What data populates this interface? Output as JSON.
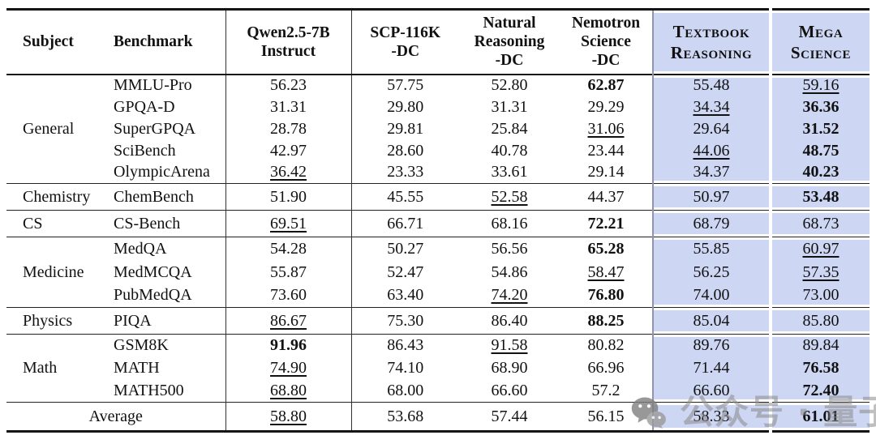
{
  "table": {
    "columns": [
      {
        "label": "Subject"
      },
      {
        "label": "Benchmark"
      },
      {
        "label": "Qwen2.5-7B\nInstruct"
      },
      {
        "label": "SCP-116K\n-DC"
      },
      {
        "label": "Natural\nReasoning\n-DC"
      },
      {
        "label": "Nemotron\nScience\n-DC"
      },
      {
        "label": "Textbook\nReasoning",
        "highlight": true
      },
      {
        "label": "Mega\nScience",
        "highlight": true
      }
    ],
    "sections": [
      {
        "subject": "General",
        "rows": [
          {
            "benchmark": "MMLU-Pro",
            "values": [
              {
                "v": "56.23"
              },
              {
                "v": "57.75"
              },
              {
                "v": "52.80"
              },
              {
                "v": "62.87",
                "style": "bold"
              },
              {
                "v": "55.48"
              },
              {
                "v": "59.16",
                "style": "underline"
              }
            ]
          },
          {
            "benchmark": "GPQA-D",
            "values": [
              {
                "v": "31.31"
              },
              {
                "v": "29.80"
              },
              {
                "v": "31.31"
              },
              {
                "v": "29.29"
              },
              {
                "v": "34.34",
                "style": "underline"
              },
              {
                "v": "36.36",
                "style": "bold"
              }
            ]
          },
          {
            "benchmark": "SuperGPQA",
            "values": [
              {
                "v": "28.78"
              },
              {
                "v": "29.81"
              },
              {
                "v": "25.84"
              },
              {
                "v": "31.06",
                "style": "underline"
              },
              {
                "v": "29.64"
              },
              {
                "v": "31.52",
                "style": "bold"
              }
            ]
          },
          {
            "benchmark": "SciBench",
            "values": [
              {
                "v": "42.97"
              },
              {
                "v": "28.60"
              },
              {
                "v": "40.78"
              },
              {
                "v": "23.44"
              },
              {
                "v": "44.06",
                "style": "underline"
              },
              {
                "v": "48.75",
                "style": "bold"
              }
            ]
          },
          {
            "benchmark": "OlympicArena",
            "values": [
              {
                "v": "36.42",
                "style": "underline"
              },
              {
                "v": "23.33"
              },
              {
                "v": "33.61"
              },
              {
                "v": "29.14"
              },
              {
                "v": "34.37"
              },
              {
                "v": "40.23",
                "style": "bold"
              }
            ]
          }
        ]
      },
      {
        "subject": "Chemistry",
        "rows": [
          {
            "benchmark": "ChemBench",
            "values": [
              {
                "v": "51.90"
              },
              {
                "v": "45.55"
              },
              {
                "v": "52.58",
                "style": "underline"
              },
              {
                "v": "44.37"
              },
              {
                "v": "50.97"
              },
              {
                "v": "53.48",
                "style": "bold"
              }
            ]
          }
        ]
      },
      {
        "subject": "CS",
        "rows": [
          {
            "benchmark": "CS-Bench",
            "values": [
              {
                "v": "69.51",
                "style": "underline"
              },
              {
                "v": "66.71"
              },
              {
                "v": "68.16"
              },
              {
                "v": "72.21",
                "style": "bold"
              },
              {
                "v": "68.79"
              },
              {
                "v": "68.73"
              }
            ]
          }
        ]
      },
      {
        "subject": "Medicine",
        "rows": [
          {
            "benchmark": "MedQA",
            "values": [
              {
                "v": "54.28"
              },
              {
                "v": "50.27"
              },
              {
                "v": "56.56"
              },
              {
                "v": "65.28",
                "style": "bold"
              },
              {
                "v": "55.85"
              },
              {
                "v": "60.97",
                "style": "underline"
              }
            ]
          },
          {
            "benchmark": "MedMCQA",
            "values": [
              {
                "v": "55.87"
              },
              {
                "v": "52.47"
              },
              {
                "v": "54.86"
              },
              {
                "v": "58.47",
                "style": "underline"
              },
              {
                "v": "56.25"
              },
              {
                "v": "57.35",
                "style": "underline"
              }
            ]
          },
          {
            "benchmark": "PubMedQA",
            "values": [
              {
                "v": "73.60"
              },
              {
                "v": "63.40"
              },
              {
                "v": "74.20",
                "style": "underline"
              },
              {
                "v": "76.80",
                "style": "bold"
              },
              {
                "v": "74.00"
              },
              {
                "v": "73.00"
              }
            ]
          }
        ]
      },
      {
        "subject": "Physics",
        "rows": [
          {
            "benchmark": "PIQA",
            "values": [
              {
                "v": "86.67",
                "style": "underline"
              },
              {
                "v": "75.30"
              },
              {
                "v": "86.40"
              },
              {
                "v": "88.25",
                "style": "bold"
              },
              {
                "v": "85.04"
              },
              {
                "v": "85.80"
              }
            ]
          }
        ]
      },
      {
        "subject": "Math",
        "rows": [
          {
            "benchmark": "GSM8K",
            "values": [
              {
                "v": "91.96",
                "style": "bold"
              },
              {
                "v": "86.43"
              },
              {
                "v": "91.58",
                "style": "underline"
              },
              {
                "v": "80.82"
              },
              {
                "v": "89.76"
              },
              {
                "v": "89.84"
              }
            ]
          },
          {
            "benchmark": "MATH",
            "values": [
              {
                "v": "74.90",
                "style": "underline"
              },
              {
                "v": "74.10"
              },
              {
                "v": "68.90"
              },
              {
                "v": "66.96"
              },
              {
                "v": "71.44"
              },
              {
                "v": "76.58",
                "style": "bold"
              }
            ]
          },
          {
            "benchmark": "MATH500",
            "values": [
              {
                "v": "68.80",
                "style": "underline"
              },
              {
                "v": "68.00"
              },
              {
                "v": "66.60"
              },
              {
                "v": "57.2"
              },
              {
                "v": "66.60"
              },
              {
                "v": "72.40",
                "style": "bold"
              }
            ]
          }
        ]
      }
    ],
    "footer": {
      "label": "Average",
      "values": [
        {
          "v": "58.80",
          "style": "underline"
        },
        {
          "v": "53.68"
        },
        {
          "v": "57.44"
        },
        {
          "v": "56.15"
        },
        {
          "v": "58.33"
        },
        {
          "v": "61.01",
          "style": "bold"
        }
      ]
    }
  },
  "watermark": {
    "icon": "wechat-icon",
    "text": "公众号 · 量子位"
  },
  "colors": {
    "highlight": "#cdd6f2",
    "highlight_border": "#9097ad",
    "rule": "#151515",
    "watermark_gray": "#8a8a8a"
  }
}
